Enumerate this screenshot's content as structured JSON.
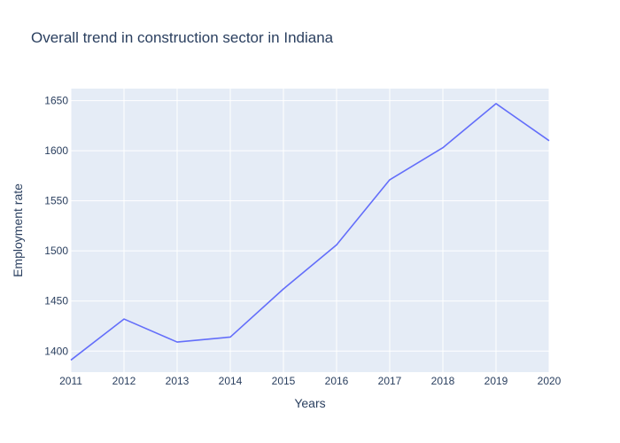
{
  "chart_data": {
    "type": "line",
    "title": "Overall trend in construction sector in Indiana",
    "xlabel": "Years",
    "ylabel": "Employment rate",
    "x": [
      2011,
      2012,
      2013,
      2014,
      2015,
      2016,
      2017,
      2018,
      2019,
      2020
    ],
    "xticks": [
      "2011",
      "2012",
      "2013",
      "2014",
      "2015",
      "2016",
      "2017",
      "2018",
      "2019",
      "2020"
    ],
    "yticks": [
      1400,
      1450,
      1500,
      1550,
      1600,
      1650
    ],
    "xlim": [
      2011,
      2020
    ],
    "ylim": [
      1379,
      1662
    ],
    "grid": true,
    "series": [
      {
        "values": [
          1391,
          1432,
          1409,
          1414,
          1462,
          1506,
          1571,
          1603,
          1647,
          1610
        ],
        "color": "#636efa"
      }
    ],
    "colors": {
      "plot_bg": "#e5ecf6",
      "grid": "#ffffff",
      "text": "#2a3f5f"
    }
  }
}
